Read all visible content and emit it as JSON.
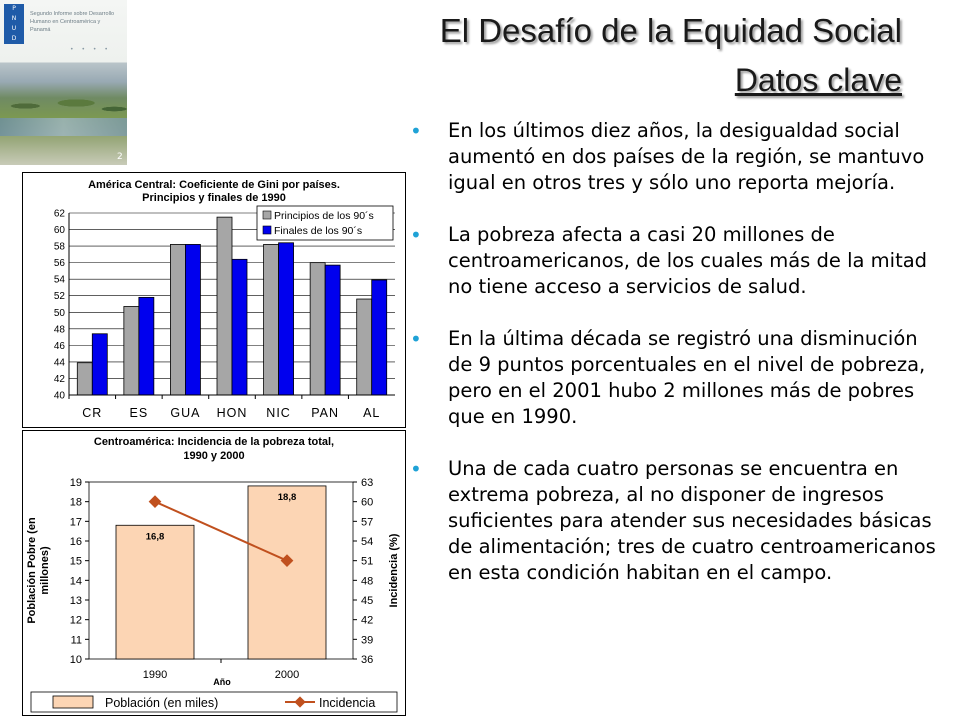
{
  "cover": {
    "text": "Segundo Informe sobre Desarrollo Humano en Centroamérica y Panamá",
    "page": "2",
    "logo_text": [
      "P",
      "N",
      "U",
      "D"
    ]
  },
  "title": {
    "line1": "El Desafío de la Equidad Social",
    "line2": "Datos clave"
  },
  "bullets": [
    "En los últimos diez años, la desigualdad social aumentó en dos países de la región, se mantuvo igual en otros tres y sólo uno reporta mejoría.",
    "La pobreza afecta a casi 20 millones de centroamericanos, de los cuales más de la mitad no tiene acceso a servicios de salud.",
    "En la última década se registró una disminución de 9 puntos porcentuales en el nivel de pobreza, pero en el 2001 hubo 2 millones más de pobres que en 1990.",
    "Una de cada cuatro personas se encuentra en extrema pobreza, al no disponer de ingresos suficientes para atender sus necesidades básicas de alimentación; tres de cuatro centroamericanos en esta condición habitan en el campo."
  ],
  "chart_data": [
    {
      "type": "bar",
      "title": "América Central: Coeficiente de Gini por países. Principios y finales de 1990",
      "title_lines": [
        "América Central: Coeficiente de Gini por países.",
        "Principios y finales de 1990"
      ],
      "categories": [
        "CR",
        "ES",
        "GUA",
        "HON",
        "NIC",
        "PAN",
        "AL"
      ],
      "series": [
        {
          "name": "Principios de los 90´s",
          "color": "#a6a6a6",
          "values": [
            43.9,
            50.7,
            58.2,
            61.5,
            58.2,
            56.0,
            51.6
          ]
        },
        {
          "name": "Finales de los 90´s",
          "color": "#0000ee",
          "values": [
            47.4,
            51.8,
            58.2,
            56.4,
            58.4,
            55.7,
            53.9
          ]
        }
      ],
      "ylim": [
        40,
        62
      ],
      "yticks": [
        40,
        42,
        44,
        46,
        48,
        50,
        52,
        54,
        56,
        58,
        60,
        62
      ],
      "grid": true,
      "legend": "top-right"
    },
    {
      "type": "bar+line",
      "title": "Centroamérica: Incidencia de la pobreza total, 1990 y 2000",
      "title_lines": [
        "Centroamérica: Incidencia de la pobreza total,",
        "1990 y 2000"
      ],
      "categories": [
        "1990",
        "2000"
      ],
      "xlabel": "Año",
      "ylabel_left": "Población Pobre (en millones)",
      "ylabel_left_lines": [
        "Población Pobre (en",
        "millones)"
      ],
      "ylabel_right": "Incidencia (%)",
      "bars": {
        "name": "Población (en miles)",
        "color": "#fcd5b4",
        "values": [
          16.8,
          18.8
        ],
        "labels": [
          "16,8",
          "18,8"
        ]
      },
      "line": {
        "name": "Incidencia",
        "color": "#c0501e",
        "values": [
          60,
          51
        ]
      },
      "ylim_left": [
        10,
        19
      ],
      "yticks_left": [
        10,
        11,
        12,
        13,
        14,
        15,
        16,
        17,
        18,
        19
      ],
      "ylim_right": [
        36,
        63
      ],
      "yticks_right": [
        36,
        39,
        42,
        45,
        48,
        51,
        54,
        57,
        60,
        63
      ],
      "legend": "bottom"
    }
  ]
}
